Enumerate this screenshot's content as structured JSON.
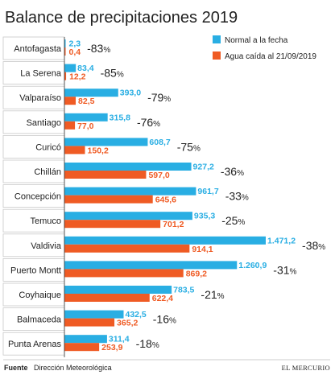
{
  "chart_data": {
    "type": "bar",
    "orientation": "horizontal",
    "title": "Balance de precipitaciones 2019",
    "categories": [
      "Antofagasta",
      "La Serena",
      "Valparaíso",
      "Santiago",
      "Curicó",
      "Chillán",
      "Concepción",
      "Temuco",
      "Valdivia",
      "Puerto Montt",
      "Coyhaique",
      "Balmaceda",
      "Punta Arenas"
    ],
    "series": [
      {
        "name": "Normal a la fecha",
        "color": "#29aee3",
        "values": [
          2.3,
          83.4,
          393.0,
          315.8,
          608.7,
          927.2,
          961.7,
          935.3,
          1471.2,
          1260.9,
          783.5,
          432.5,
          311.4
        ],
        "labels": [
          "2,3",
          "83,4",
          "393,0",
          "315,8",
          "608,7",
          "927,2",
          "961,7",
          "935,3",
          "1.471,2",
          "1.260,9",
          "783,5",
          "432,5",
          "311,4"
        ]
      },
      {
        "name": "Agua caída al 21/09/2019",
        "color": "#ef5b24",
        "values": [
          0.4,
          12.2,
          82.5,
          77.0,
          150.2,
          597.0,
          645.6,
          701.2,
          914.1,
          869.2,
          622.4,
          365.2,
          253.9
        ],
        "labels": [
          "0,4",
          "12,2",
          "82,5",
          "77,0",
          "150,2",
          "597,0",
          "645,6",
          "701,2",
          "914,1",
          "869,2",
          "622,4",
          "365,2",
          "253,9"
        ]
      }
    ],
    "deficit_labels": [
      "-83",
      "-85",
      "-79",
      "-76",
      "-75",
      "-36",
      "-33",
      "-25",
      "-38",
      "-31",
      "-21",
      "-16",
      "-18"
    ],
    "percent_sign": "%",
    "legend_placement": "top-right"
  },
  "footer": {
    "source_label": "Fuente",
    "source_text": "Dirección Meteorológica",
    "brand": "EL MERCURIO"
  }
}
